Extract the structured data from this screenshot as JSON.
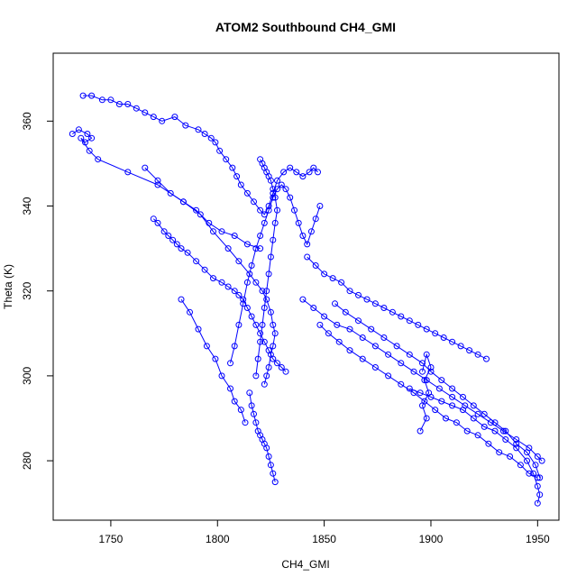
{
  "chart_data": {
    "type": "scatter",
    "title": "ATOM2 Southbound CH4_GMI",
    "xlabel": "CH4_GMI",
    "ylabel": "Theta (K)",
    "xlim": [
      1723,
      1960
    ],
    "ylim": [
      266,
      376
    ],
    "x_ticks": [
      1750,
      1800,
      1850,
      1900,
      1950
    ],
    "y_ticks": [
      280,
      300,
      320,
      340,
      360
    ],
    "grid": false,
    "legend": "none",
    "marker": "open-circle",
    "line_connected": true,
    "color": "#0000ff",
    "series": [
      {
        "x": [
          1737,
          1741,
          1746,
          1750,
          1754,
          1758,
          1762,
          1766,
          1770,
          1774,
          1780,
          1785,
          1791,
          1794,
          1797,
          1799,
          1801,
          1804,
          1807,
          1809,
          1811,
          1814,
          1817,
          1820,
          1822,
          1824,
          1826,
          1828,
          1831,
          1834,
          1837,
          1840,
          1843,
          1845,
          1847
        ],
        "y": [
          366,
          366,
          365,
          365,
          364,
          364,
          363,
          362,
          361,
          360,
          361,
          359,
          358,
          357,
          356,
          355,
          353,
          351,
          349,
          347,
          345,
          343,
          341,
          339,
          338,
          340,
          343,
          346,
          348,
          349,
          348,
          347,
          348,
          349,
          348
        ]
      },
      {
        "x": [
          1732,
          1735,
          1739,
          1741,
          1738,
          1736,
          1740,
          1744,
          1758,
          1772,
          1784,
          1792,
          1798,
          1805,
          1810,
          1815,
          1818,
          1821,
          1823,
          1825,
          1826,
          1827,
          1826,
          1825,
          1824,
          1823,
          1822
        ],
        "y": [
          357,
          358,
          357,
          356,
          355,
          356,
          353,
          351,
          348,
          345,
          341,
          338,
          334,
          330,
          327,
          324,
          322,
          320,
          318,
          315,
          312,
          310,
          307,
          305,
          302,
          300,
          298
        ]
      },
      {
        "x": [
          1770,
          1772,
          1775,
          1777,
          1779,
          1781,
          1783,
          1786,
          1790,
          1794,
          1798,
          1802,
          1805,
          1808,
          1810,
          1812,
          1814,
          1816,
          1818,
          1820,
          1822,
          1824,
          1826,
          1828,
          1830,
          1832
        ],
        "y": [
          337,
          336,
          334,
          333,
          332,
          331,
          330,
          329,
          327,
          325,
          323,
          322,
          321,
          320,
          319,
          318,
          316,
          314,
          312,
          310,
          308,
          306,
          304,
          303,
          302,
          301
        ]
      },
      {
        "x": [
          1806,
          1808,
          1810,
          1812,
          1814,
          1816,
          1818,
          1820,
          1822,
          1824,
          1826,
          1828,
          1830,
          1832,
          1834,
          1836,
          1838,
          1840,
          1842,
          1844,
          1846,
          1848
        ],
        "y": [
          303,
          307,
          312,
          317,
          322,
          326,
          330,
          333,
          336,
          339,
          342,
          344,
          345,
          344,
          342,
          339,
          336,
          333,
          331,
          334,
          337,
          340
        ]
      },
      {
        "x": [
          1820,
          1821,
          1822,
          1823,
          1824,
          1825,
          1826,
          1827,
          1828,
          1827,
          1826,
          1825,
          1824,
          1823,
          1822,
          1821,
          1820,
          1819,
          1818
        ],
        "y": [
          351,
          350,
          349,
          348,
          347,
          346,
          344,
          342,
          339,
          336,
          332,
          328,
          324,
          320,
          316,
          312,
          308,
          304,
          300
        ]
      },
      {
        "x": [
          1815,
          1816,
          1817,
          1818,
          1819,
          1820,
          1821,
          1822,
          1823,
          1824,
          1825,
          1826,
          1827
        ],
        "y": [
          296,
          293,
          291,
          289,
          287,
          286,
          285,
          284,
          283,
          281,
          279,
          277,
          275
        ]
      },
      {
        "x": [
          1842,
          1846,
          1850,
          1854,
          1858,
          1862,
          1866,
          1870,
          1874,
          1878,
          1882,
          1886,
          1890,
          1894,
          1898,
          1902,
          1906,
          1910,
          1914,
          1918,
          1922,
          1926
        ],
        "y": [
          328,
          326,
          324,
          323,
          322,
          320,
          319,
          318,
          317,
          316,
          315,
          314,
          313,
          312,
          311,
          310,
          309,
          308,
          307,
          306,
          305,
          304
        ]
      },
      {
        "x": [
          1840,
          1845,
          1850,
          1856,
          1862,
          1868,
          1874,
          1880,
          1886,
          1892,
          1898,
          1904,
          1910,
          1916,
          1922,
          1928,
          1934,
          1940,
          1946,
          1950,
          1952
        ],
        "y": [
          318,
          316,
          314,
          312,
          311,
          309,
          307,
          305,
          303,
          301,
          299,
          297,
          295,
          293,
          291,
          289,
          287,
          285,
          283,
          281,
          280
        ]
      },
      {
        "x": [
          1848,
          1852,
          1857,
          1862,
          1868,
          1874,
          1880,
          1886,
          1892,
          1897,
          1902,
          1907,
          1912,
          1917,
          1922,
          1927,
          1932,
          1937,
          1942,
          1946,
          1950
        ],
        "y": [
          312,
          310,
          308,
          306,
          304,
          302,
          300,
          298,
          296,
          294,
          292,
          290,
          289,
          287,
          286,
          284,
          282,
          281,
          279,
          277,
          276
        ]
      },
      {
        "x": [
          1855,
          1860,
          1866,
          1872,
          1878,
          1884,
          1890,
          1896,
          1900,
          1905,
          1910,
          1915,
          1920,
          1925,
          1930,
          1935,
          1940,
          1945,
          1949,
          1951
        ],
        "y": [
          317,
          315,
          313,
          311,
          309,
          307,
          305,
          303,
          301,
          299,
          297,
          295,
          293,
          291,
          289,
          287,
          284,
          282,
          279,
          276
        ]
      },
      {
        "x": [
          1890,
          1895,
          1900,
          1905,
          1910,
          1915,
          1920,
          1925,
          1930,
          1935,
          1940,
          1945,
          1948,
          1950,
          1951,
          1950
        ],
        "y": [
          297,
          296,
          295,
          294,
          293,
          292,
          290,
          288,
          287,
          285,
          283,
          280,
          277,
          274,
          272,
          270
        ]
      },
      {
        "x": [
          1895,
          1898,
          1896,
          1899,
          1897,
          1900,
          1898,
          1896
        ],
        "y": [
          287,
          290,
          293,
          296,
          299,
          302,
          305,
          301
        ]
      },
      {
        "x": [
          1766,
          1772,
          1778,
          1784,
          1790,
          1796,
          1802,
          1808,
          1814,
          1820
        ],
        "y": [
          349,
          346,
          343,
          341,
          339,
          336,
          334,
          333,
          331,
          330
        ]
      },
      {
        "x": [
          1783,
          1787,
          1791,
          1795,
          1799,
          1802,
          1806,
          1808,
          1811,
          1813
        ],
        "y": [
          318,
          315,
          311,
          307,
          304,
          300,
          297,
          294,
          292,
          289
        ]
      }
    ]
  }
}
